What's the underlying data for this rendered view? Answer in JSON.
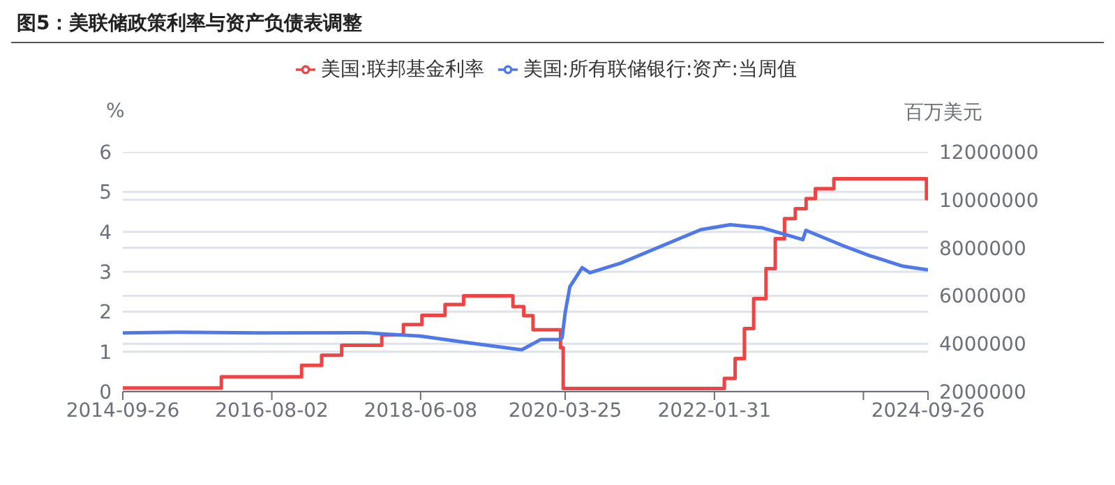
{
  "chart_data": {
    "type": "line",
    "title": "图5：美联储政策利率与资产负债表调整",
    "ylabel": "%",
    "y2label": "百万美元",
    "xlim": [
      "2014-09-26",
      "2024-09-26"
    ],
    "xticks": [
      "2014-09-26",
      "2016-08-02",
      "2018-06-08",
      "2020-03-25",
      "2022-01-31",
      {
        "value": "2023-12-08",
        "label": null
      },
      "2024-09-26"
    ],
    "ylim": [
      0,
      6
    ],
    "yticks": [
      0,
      1,
      2,
      3,
      4,
      5,
      6
    ],
    "y2lim": [
      2000000,
      12000000
    ],
    "y2ticks": [
      2000000,
      4000000,
      6000000,
      8000000,
      10000000,
      12000000
    ],
    "grid": "y",
    "legend": "top",
    "marker": "none",
    "series": [
      {
        "name": "美国:联邦基金利率",
        "type": "step",
        "color": "#ee4444",
        "x": [
          "2014-09-26",
          "2015-12-17",
          "2016-12-15",
          "2017-03-16",
          "2017-06-15",
          "2017-12-14",
          "2018-03-22",
          "2018-06-14",
          "2018-09-27",
          "2018-12-20",
          "2019-08-01",
          "2019-09-19",
          "2019-10-31",
          "2020-03-04",
          "2020-03-16",
          "2022-03-17",
          "2022-05-05",
          "2022-06-16",
          "2022-07-28",
          "2022-09-22",
          "2022-11-03",
          "2022-12-15",
          "2023-02-02",
          "2023-03-23",
          "2023-05-04",
          "2023-07-27",
          "2024-09-19",
          "2024-09-26"
        ],
        "values": [
          0.09,
          0.37,
          0.66,
          0.91,
          1.16,
          1.42,
          1.68,
          1.91,
          2.18,
          2.4,
          2.13,
          1.9,
          1.55,
          1.1,
          0.08,
          0.33,
          0.83,
          1.58,
          2.33,
          3.08,
          3.83,
          4.33,
          4.58,
          4.83,
          5.08,
          5.33,
          4.83,
          4.83
        ]
      },
      {
        "name": "美国:所有联储银行:资产:当周值",
        "type": "line",
        "axis": "y2",
        "color": "#4f78e8",
        "x": [
          "2014-09-26",
          "2015-06-01",
          "2016-06-01",
          "2017-10-01",
          "2018-01-03",
          "2018-06-06",
          "2019-01-02",
          "2019-08-28",
          "2019-09-11",
          "2019-12-04",
          "2020-02-26",
          "2020-03-11",
          "2020-03-25",
          "2020-04-15",
          "2020-06-10",
          "2020-07-15",
          "2020-12-02",
          "2021-06-02",
          "2021-12-01",
          "2022-04-13",
          "2022-09-07",
          "2023-03-08",
          "2023-03-22",
          "2023-09-06",
          "2024-01-03",
          "2024-06-05",
          "2024-09-26"
        ],
        "values": [
          4450000,
          4480000,
          4450000,
          4460000,
          4400000,
          4320000,
          4050000,
          3760000,
          3750000,
          4170000,
          4170000,
          4240000,
          5300000,
          6370000,
          7170000,
          6960000,
          7360000,
          8060000,
          8760000,
          8960000,
          8830000,
          8340000,
          8730000,
          8090000,
          7680000,
          7230000,
          7080000
        ]
      }
    ]
  }
}
